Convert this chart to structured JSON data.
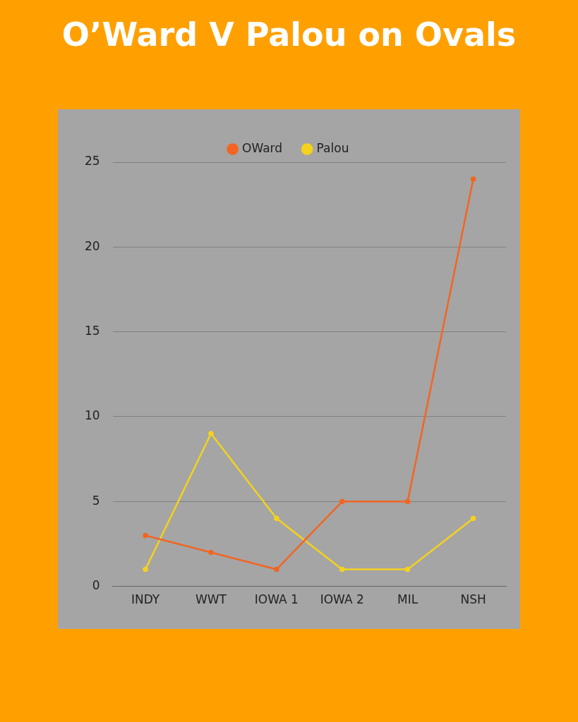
{
  "chart_data": {
    "type": "line",
    "title": "O’Ward V Palou on Ovals",
    "categories": [
      "INDY",
      "WWT",
      "IOWA 1",
      "IOWA 2",
      "MIL",
      "NSH"
    ],
    "series": [
      {
        "name": "OWard",
        "color": "#f26522",
        "values": [
          3,
          2,
          1,
          5,
          5,
          24
        ]
      },
      {
        "name": "Palou",
        "color": "#f5d21c",
        "values": [
          1,
          9,
          4,
          1,
          1,
          4
        ]
      }
    ],
    "ylim": [
      0,
      25
    ],
    "yticks": [
      0,
      5,
      10,
      15,
      20,
      25
    ],
    "grid": "y",
    "legend": "top",
    "marker": "circle",
    "line_style": "solid"
  }
}
